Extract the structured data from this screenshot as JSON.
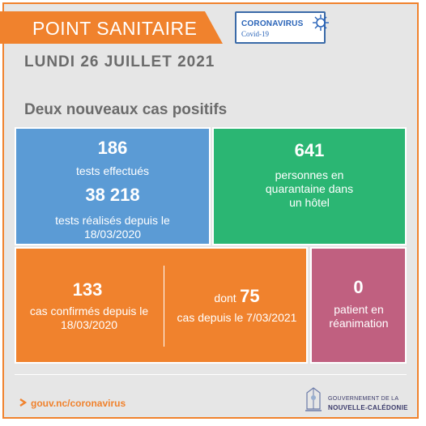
{
  "header": {
    "banner_title": "POINT SANITAIRE",
    "covid_title": "CORONAVIRUS",
    "covid_sub": "Covid-19"
  },
  "date": "LUNDI 26  JUILLET 2021",
  "subtitle": "Deux nouveaux cas positifs",
  "tiles": {
    "tests": {
      "count": "186",
      "count_label": "tests effectués",
      "total": "38 218",
      "total_label": "tests réalisés depuis le 18/03/2020"
    },
    "quarantine": {
      "count": "641",
      "label": "personnes en quarantaine dans un hôtel"
    },
    "cases": {
      "count": "133",
      "label": "cas confirmés depuis le 18/03/2020",
      "dont_prefix": "dont",
      "dont_count": "75",
      "dont_label": "cas depuis le 7/03/2021"
    },
    "icu": {
      "count": "0",
      "label": "patient en réanimation"
    }
  },
  "footer": {
    "url": "gouv.nc/coronavirus",
    "gov_line1": "GOUVERNEMENT DE LA",
    "gov_line2": "NOUVELLE-CALÉDONIE"
  },
  "colors": {
    "orange": "#f0822d",
    "blue": "#5b9bd5",
    "green": "#2bb673",
    "pink": "#c06080",
    "background": "#e6e6e6"
  }
}
